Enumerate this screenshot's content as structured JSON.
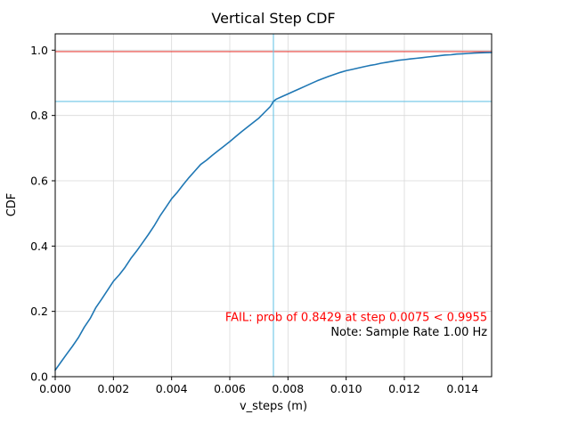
{
  "chart_data": {
    "type": "line",
    "title": "Vertical Step CDF",
    "xlabel": "v_steps (m)",
    "ylabel": "CDF",
    "xlim": [
      0,
      0.015
    ],
    "ylim": [
      0,
      1.05
    ],
    "grid": true,
    "legend": "none",
    "xtick_values": [
      0,
      0.002,
      0.004,
      0.006,
      0.008,
      0.01,
      0.012,
      0.014
    ],
    "xtick_labels": [
      "0.000",
      "0.002",
      "0.004",
      "0.006",
      "0.008",
      "0.010",
      "0.012",
      "0.014"
    ],
    "ytick_values": [
      0.0,
      0.2,
      0.4,
      0.6,
      0.8,
      1.0
    ],
    "ytick_labels": [
      "0.0",
      "0.2",
      "0.4",
      "0.6",
      "0.8",
      "1.0"
    ],
    "series": [
      {
        "name": "vertical-step-cdf",
        "color": "#1f77b4",
        "points": [
          [
            0.0,
            0.02
          ],
          [
            0.0002,
            0.045
          ],
          [
            0.0004,
            0.07
          ],
          [
            0.0006,
            0.094
          ],
          [
            0.0008,
            0.12
          ],
          [
            0.001,
            0.152
          ],
          [
            0.0012,
            0.178
          ],
          [
            0.0014,
            0.212
          ],
          [
            0.0016,
            0.238
          ],
          [
            0.0018,
            0.265
          ],
          [
            0.002,
            0.292
          ],
          [
            0.0022,
            0.312
          ],
          [
            0.0024,
            0.335
          ],
          [
            0.0026,
            0.362
          ],
          [
            0.0028,
            0.385
          ],
          [
            0.003,
            0.41
          ],
          [
            0.0032,
            0.435
          ],
          [
            0.0034,
            0.462
          ],
          [
            0.0036,
            0.492
          ],
          [
            0.0038,
            0.518
          ],
          [
            0.004,
            0.545
          ],
          [
            0.0042,
            0.565
          ],
          [
            0.0044,
            0.588
          ],
          [
            0.0046,
            0.61
          ],
          [
            0.0048,
            0.63
          ],
          [
            0.005,
            0.65
          ],
          [
            0.0052,
            0.663
          ],
          [
            0.0054,
            0.678
          ],
          [
            0.0056,
            0.692
          ],
          [
            0.0058,
            0.706
          ],
          [
            0.006,
            0.72
          ],
          [
            0.0062,
            0.735
          ],
          [
            0.0064,
            0.75
          ],
          [
            0.0066,
            0.764
          ],
          [
            0.0068,
            0.778
          ],
          [
            0.007,
            0.792
          ],
          [
            0.0072,
            0.81
          ],
          [
            0.0074,
            0.828
          ],
          [
            0.0075,
            0.843
          ],
          [
            0.0076,
            0.85
          ],
          [
            0.0078,
            0.858
          ],
          [
            0.008,
            0.866
          ],
          [
            0.0082,
            0.874
          ],
          [
            0.0084,
            0.882
          ],
          [
            0.0086,
            0.89
          ],
          [
            0.0088,
            0.898
          ],
          [
            0.009,
            0.906
          ],
          [
            0.0092,
            0.913
          ],
          [
            0.0094,
            0.92
          ],
          [
            0.0096,
            0.926
          ],
          [
            0.0098,
            0.932
          ],
          [
            0.01,
            0.937
          ],
          [
            0.0102,
            0.941
          ],
          [
            0.0104,
            0.945
          ],
          [
            0.0106,
            0.949
          ],
          [
            0.0108,
            0.953
          ],
          [
            0.011,
            0.956
          ],
          [
            0.0112,
            0.96
          ],
          [
            0.0114,
            0.963
          ],
          [
            0.0116,
            0.966
          ],
          [
            0.0118,
            0.969
          ],
          [
            0.012,
            0.971
          ],
          [
            0.0122,
            0.973
          ],
          [
            0.0124,
            0.975
          ],
          [
            0.0126,
            0.977
          ],
          [
            0.0128,
            0.979
          ],
          [
            0.013,
            0.981
          ],
          [
            0.0132,
            0.983
          ],
          [
            0.0134,
            0.985
          ],
          [
            0.0136,
            0.986
          ],
          [
            0.0138,
            0.988
          ],
          [
            0.014,
            0.989
          ],
          [
            0.0142,
            0.99
          ],
          [
            0.0144,
            0.991
          ],
          [
            0.0146,
            0.992
          ],
          [
            0.0148,
            0.9925
          ],
          [
            0.015,
            0.993
          ]
        ]
      }
    ],
    "hlines": [
      {
        "name": "pass-threshold-line",
        "y": 0.9955,
        "color": "#e8433c"
      },
      {
        "name": "crossing-probability-line",
        "y": 0.8429,
        "color": "#6cc5e6"
      }
    ],
    "vlines": [
      {
        "name": "crossing-step-line",
        "x": 0.0075,
        "color": "#6cc5e6"
      }
    ],
    "annotations": [
      {
        "name": "fail-annotation",
        "text": "FAIL: prob of 0.8429 at step 0.0075 < 0.9955",
        "color": "#ff0000",
        "x": 0.01485,
        "y": 0.17,
        "anchor": "end"
      },
      {
        "name": "note-annotation",
        "text": "Note: Sample Rate 1.00 Hz",
        "color": "#000000",
        "x": 0.01485,
        "y": 0.125,
        "anchor": "end"
      }
    ],
    "key_values": {
      "probability_at_step": 0.8429,
      "step": 0.0075,
      "required_probability": 0.9955,
      "result": "FAIL",
      "sample_rate_hz": "1.00"
    }
  }
}
